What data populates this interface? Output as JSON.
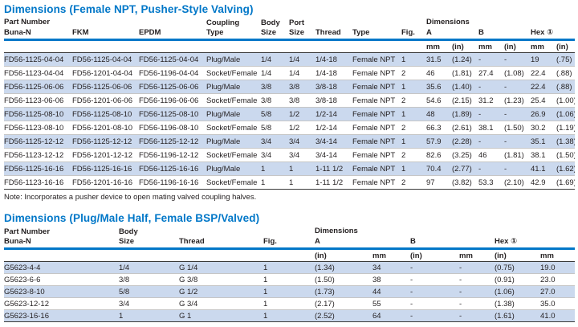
{
  "colors": {
    "accent_blue": "#0077c8",
    "row_stripe": "#cbd9ee",
    "text": "#231f20",
    "rule_dark": "#3a3a3a"
  },
  "table1": {
    "title": "Dimensions (Female NPT, Pusher-Style Valving)",
    "header": {
      "part_number_group": "Part Number",
      "buna": "Buna-N",
      "fkm": "FKM",
      "epdm": "EPDM",
      "coupling_type": "Coupling\nType",
      "body_size": "Body\nSize",
      "port_size": "Port\nSize",
      "thread": "Thread",
      "type": "Type",
      "fig": "Fig.",
      "dimensions_group": "Dimensions",
      "a": "A",
      "b": "B",
      "hex": "Hex ①",
      "units": [
        "mm",
        "(in)",
        "mm",
        "(in)",
        "mm",
        "(in)"
      ]
    },
    "rows": [
      [
        "FD56-1125-04-04",
        "FD56-1125-04-04",
        "FD56-1125-04-04",
        "Plug/Male",
        "1/4",
        "1/4",
        "1/4-18",
        "Female NPT",
        "1",
        "31.5",
        "(1.24)",
        "-",
        "-",
        "19",
        "(.75)"
      ],
      [
        "FD56-1123-04-04",
        "FD56-1201-04-04",
        "FD56-1196-04-04",
        "Socket/Female",
        "1/4",
        "1/4",
        "1/4-18",
        "Female NPT",
        "2",
        "46",
        "(1.81)",
        "27.4",
        "(1.08)",
        "22.4",
        "(.88)"
      ],
      [
        "FD56-1125-06-06",
        "FD56-1125-06-06",
        "FD56-1125-06-06",
        "Plug/Male",
        "3/8",
        "3/8",
        "3/8-18",
        "Female NPT",
        "1",
        "35.6",
        "(1.40)",
        "-",
        "-",
        "22.4",
        "(.88)"
      ],
      [
        "FD56-1123-06-06",
        "FD56-1201-06-06",
        "FD56-1196-06-06",
        "Socket/Female",
        "3/8",
        "3/8",
        "3/8-18",
        "Female NPT",
        "2",
        "54.6",
        "(2.15)",
        "31.2",
        "(1.23)",
        "25.4",
        "(1.00)"
      ],
      [
        "FD56-1125-08-10",
        "FD56-1125-08-10",
        "FD56-1125-08-10",
        "Plug/Male",
        "5/8",
        "1/2",
        "1/2-14",
        "Female NPT",
        "1",
        "48",
        "(1.89)",
        "-",
        "-",
        "26.9",
        "(1.06)"
      ],
      [
        "FD56-1123-08-10",
        "FD56-1201-08-10",
        "FD56-1196-08-10",
        "Socket/Female",
        "5/8",
        "1/2",
        "1/2-14",
        "Female NPT",
        "2",
        "66.3",
        "(2.61)",
        "38.1",
        "(1.50)",
        "30.2",
        "(1.19)"
      ],
      [
        "FD56-1125-12-12",
        "FD56-1125-12-12",
        "FD56-1125-12-12",
        "Plug/Male",
        "3/4",
        "3/4",
        "3/4-14",
        "Female NPT",
        "1",
        "57.9",
        "(2.28)",
        "-",
        "-",
        "35.1",
        "(1.38)"
      ],
      [
        "FD56-1123-12-12",
        "FD56-1201-12-12",
        "FD56-1196-12-12",
        "Socket/Female",
        "3/4",
        "3/4",
        "3/4-14",
        "Female NPT",
        "2",
        "82.6",
        "(3.25)",
        "46",
        "(1.81)",
        "38.1",
        "(1.50)"
      ],
      [
        "FD56-1125-16-16",
        "FD56-1125-16-16",
        "FD56-1125-16-16",
        "Plug/Male",
        "1",
        "1",
        "1-11 1/2",
        "Female NPT",
        "1",
        "70.4",
        "(2.77)",
        "-",
        "-",
        "41.1",
        "(1.62)"
      ],
      [
        "FD56-1123-16-16",
        "FD56-1201-16-16",
        "FD56-1196-16-16",
        "Socket/Female",
        "1",
        "1",
        "1-11 1/2",
        "Female NPT",
        "2",
        "97",
        "(3.82)",
        "53.3",
        "(2.10)",
        "42.9",
        "(1.69)"
      ]
    ],
    "note": "Note: Incorporates a pusher device to open mating valved coupling halves."
  },
  "table2": {
    "title": "Dimensions (Plug/Male Half, Female BSP/Valved)",
    "header": {
      "part_number_buna": "Part Number\nBuna-N",
      "body_size": "Body\nSize",
      "thread": "Thread",
      "fig": "Fig.",
      "dimensions_group": "Dimensions",
      "a": "A",
      "b": "B",
      "hex": "Hex ①",
      "units": [
        "(in)",
        "mm",
        "(in)",
        "mm",
        "(in)",
        "mm"
      ]
    },
    "rows": [
      [
        "G5623-4-4",
        "1/4",
        "G 1/4",
        "1",
        "(1.34)",
        "34",
        "-",
        "-",
        "(0.75)",
        "19.0"
      ],
      [
        "G5623-6-6",
        "3/8",
        "G 3/8",
        "1",
        "(1.50)",
        "38",
        "-",
        "-",
        "(0.91)",
        "23.0"
      ],
      [
        "G5623-8-10",
        "5/8",
        "G 1/2",
        "1",
        "(1.73)",
        "44",
        "-",
        "-",
        "(1.06)",
        "27.0"
      ],
      [
        "G5623-12-12",
        "3/4",
        "G 3/4",
        "1",
        "(2.17)",
        "55",
        "-",
        "-",
        "(1.38)",
        "35.0"
      ],
      [
        "G5623-16-16",
        "1",
        "G 1",
        "1",
        "(2.52)",
        "64",
        "-",
        "-",
        "(1.61)",
        "41.0"
      ]
    ]
  }
}
